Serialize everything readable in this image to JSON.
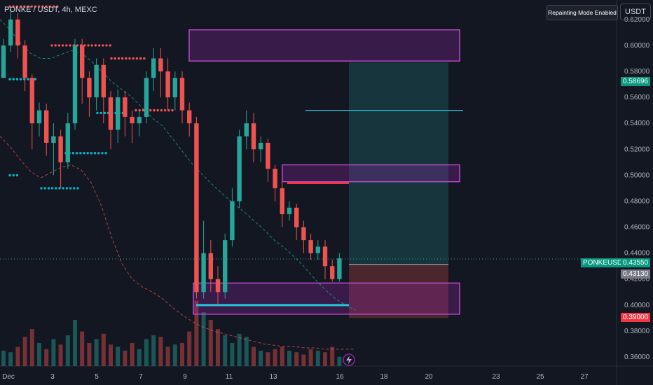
{
  "header": {
    "symbol": "PONKE / USDT, 4h, MEXC",
    "repaint_label": "Repainting Mode Enabled",
    "currency": "USDT"
  },
  "price_labels": {
    "take_profit": "0.58696",
    "last_name": "PONKEUSDT",
    "last_price": "0.43550",
    "entry": "0.43130",
    "stop_loss": "0.39000"
  },
  "colors": {
    "background": "#131722",
    "up": "#26a69a",
    "down": "#ef5350",
    "box": "#9c27b0",
    "dots_red": "#f05454",
    "dots_teal": "#00bcd4",
    "take_profit_label": "#089981",
    "stop_loss_label": "#f23645"
  },
  "icons": [
    "lightning-icon"
  ],
  "chart_data": {
    "type": "candlestick",
    "y_ticks": [
      "0.62000",
      "0.60000",
      "0.58000",
      "0.56000",
      "0.54000",
      "0.52000",
      "0.50000",
      "0.48000",
      "0.46000",
      "0.44000",
      "0.42000",
      "0.40000",
      "0.38000",
      "0.36000"
    ],
    "x_ticks": [
      "Dec",
      "3",
      "5",
      "7",
      "9",
      "11",
      "13",
      "16",
      "18",
      "20",
      "23",
      "25",
      "27"
    ],
    "ylim": [
      0.353,
      0.635
    ],
    "candles": [
      [
        0.575,
        0.6,
        0.575,
        0.605
      ],
      [
        0.6,
        0.62,
        0.595,
        0.628
      ],
      [
        0.62,
        0.6,
        0.59,
        0.625
      ],
      [
        0.6,
        0.575,
        0.565,
        0.604
      ],
      [
        0.575,
        0.54,
        0.52,
        0.578
      ],
      [
        0.54,
        0.55,
        0.53,
        0.556
      ],
      [
        0.55,
        0.525,
        0.515,
        0.555
      ],
      [
        0.525,
        0.53,
        0.5,
        0.54
      ],
      [
        0.53,
        0.51,
        0.49,
        0.535
      ],
      [
        0.51,
        0.54,
        0.505,
        0.548
      ],
      [
        0.54,
        0.6,
        0.535,
        0.605
      ],
      [
        0.6,
        0.575,
        0.555,
        0.605
      ],
      [
        0.575,
        0.56,
        0.545,
        0.58
      ],
      [
        0.56,
        0.585,
        0.55,
        0.59
      ],
      [
        0.585,
        0.56,
        0.54,
        0.59
      ],
      [
        0.56,
        0.535,
        0.52,
        0.565
      ],
      [
        0.535,
        0.56,
        0.525,
        0.566
      ],
      [
        0.56,
        0.545,
        0.53,
        0.565
      ],
      [
        0.545,
        0.54,
        0.525,
        0.55
      ],
      [
        0.54,
        0.545,
        0.53,
        0.55
      ],
      [
        0.545,
        0.575,
        0.54,
        0.58
      ],
      [
        0.575,
        0.59,
        0.565,
        0.598
      ],
      [
        0.59,
        0.58,
        0.56,
        0.598
      ],
      [
        0.58,
        0.56,
        0.55,
        0.59
      ],
      [
        0.56,
        0.575,
        0.55,
        0.58
      ],
      [
        0.575,
        0.55,
        0.54,
        0.58
      ],
      [
        0.55,
        0.54,
        0.53,
        0.556
      ],
      [
        0.54,
        0.41,
        0.405,
        0.545
      ],
      [
        0.41,
        0.44,
        0.405,
        0.465
      ],
      [
        0.44,
        0.42,
        0.41,
        0.45
      ],
      [
        0.42,
        0.41,
        0.4,
        0.43
      ],
      [
        0.41,
        0.45,
        0.405,
        0.455
      ],
      [
        0.45,
        0.48,
        0.445,
        0.49
      ],
      [
        0.48,
        0.53,
        0.475,
        0.535
      ],
      [
        0.53,
        0.54,
        0.52,
        0.55
      ],
      [
        0.54,
        0.52,
        0.51,
        0.548
      ],
      [
        0.52,
        0.525,
        0.51,
        0.53
      ],
      [
        0.525,
        0.505,
        0.495,
        0.528
      ],
      [
        0.505,
        0.49,
        0.48,
        0.508
      ],
      [
        0.49,
        0.47,
        0.46,
        0.495
      ],
      [
        0.47,
        0.475,
        0.465,
        0.48
      ],
      [
        0.475,
        0.46,
        0.45,
        0.478
      ],
      [
        0.46,
        0.45,
        0.44,
        0.465
      ],
      [
        0.45,
        0.44,
        0.435,
        0.455
      ],
      [
        0.44,
        0.445,
        0.435,
        0.45
      ],
      [
        0.445,
        0.43,
        0.42,
        0.45
      ],
      [
        0.43,
        0.42,
        0.418,
        0.435
      ],
      [
        0.42,
        0.436,
        0.418,
        0.44
      ]
    ],
    "volume": [
      20,
      18,
      25,
      38,
      48,
      30,
      22,
      35,
      28,
      40,
      60,
      45,
      30,
      35,
      42,
      28,
      25,
      20,
      30,
      22,
      35,
      40,
      38,
      25,
      28,
      30,
      45,
      85,
      70,
      60,
      48,
      40,
      30,
      42,
      38,
      25,
      20,
      18,
      22,
      25,
      20,
      18,
      15,
      22,
      20,
      18,
      25,
      12
    ],
    "ma_teal": [
      0.62,
      0.612,
      0.602,
      0.594,
      0.59,
      0.59,
      0.593,
      0.596,
      0.594,
      0.588,
      0.58,
      0.572,
      0.566,
      0.56,
      0.552,
      0.544,
      0.538,
      0.528,
      0.518,
      0.508,
      0.5,
      0.492,
      0.485,
      0.478,
      0.472,
      0.465,
      0.458,
      0.45,
      0.444,
      0.437,
      0.429,
      0.42,
      0.412,
      0.405,
      0.4,
      0.396
    ],
    "ma_red": [
      0.53,
      0.522,
      0.512,
      0.503,
      0.498,
      0.502,
      0.506,
      0.508,
      0.504,
      0.494,
      0.476,
      0.452,
      0.432,
      0.42,
      0.414,
      0.41,
      0.405,
      0.398,
      0.392,
      0.387,
      0.383,
      0.38,
      0.378,
      0.376,
      0.374,
      0.372,
      0.37,
      0.369,
      0.368,
      0.368,
      0.367,
      0.367,
      0.366,
      0.366,
      0.366,
      0.366
    ],
    "supply_zones": [
      [
        0.588,
        0.612
      ],
      [
        0.495,
        0.508
      ]
    ],
    "demand_zones": [
      [
        0.393,
        0.417
      ]
    ],
    "resistance_dots": [
      [
        0.63,
        0.0,
        0.14
      ],
      [
        0.6,
        0.12,
        0.29
      ],
      [
        0.59,
        0.29,
        0.39
      ],
      [
        0.55,
        0.36,
        0.47
      ]
    ],
    "support_dots": [
      [
        0.574,
        0.0,
        0.08
      ],
      [
        0.548,
        0.25,
        0.33
      ],
      [
        0.517,
        0.16,
        0.28
      ],
      [
        0.49,
        0.09,
        0.2
      ],
      [
        0.5,
        0.0,
        0.03
      ]
    ],
    "levels": {
      "take_profit": 0.58696,
      "entry": 0.4313,
      "stop_loss": 0.39,
      "last": 0.4355,
      "resistance_line": 0.55,
      "support_line": 0.4,
      "red_level": 0.494
    }
  }
}
